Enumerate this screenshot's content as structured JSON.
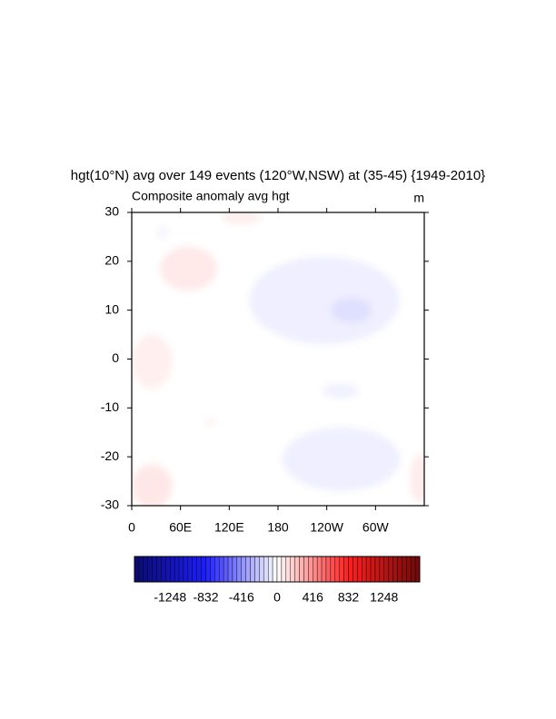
{
  "chart_data": {
    "type": "contour-map",
    "title": "hgt(10°N) avg over 149 events (120°W,NSW) at (35-45) {1949-2010}",
    "subtitle_left": "Composite anomaly avg hgt",
    "subtitle_right": "m",
    "xlim": [
      0,
      360
    ],
    "xticks": [
      0,
      {
        "value": 60,
        "label": "60E"
      },
      {
        "value": 120,
        "label": "120E"
      },
      180,
      {
        "value": 240,
        "label": "120W"
      },
      {
        "value": 300,
        "label": "60W"
      }
    ],
    "ylim": [
      -30,
      30
    ],
    "yticks": [
      30,
      20,
      10,
      0,
      -10,
      -20,
      -30
    ],
    "colormap": [
      "#0a0a6e",
      "#1e1eff",
      "#ffffff",
      "#ff1e1e",
      "#6e0a0a"
    ],
    "colorbar": {
      "lim": [
        -1664,
        1664
      ],
      "step": 52,
      "ticks": [
        -1248,
        -832,
        -416,
        0,
        416,
        832,
        1248
      ]
    },
    "patches": [
      {
        "lon": 135,
        "lat": 29,
        "dlon": 50,
        "dlat": 3,
        "value": 60
      },
      {
        "lon": 70,
        "lat": 18.5,
        "dlon": 70,
        "dlat": 9,
        "value": 80
      },
      {
        "lon": 237,
        "lat": 12,
        "dlon": 185,
        "dlat": 18,
        "value": -60
      },
      {
        "lon": 270,
        "lat": 10,
        "dlon": 50,
        "dlat": 5,
        "value": -120
      },
      {
        "lon": 25,
        "lat": -0.5,
        "dlon": 50,
        "dlat": 11,
        "value": 60
      },
      {
        "lon": 257,
        "lat": -6.5,
        "dlon": 45,
        "dlat": 3,
        "value": -50
      },
      {
        "lon": 258,
        "lat": -20.5,
        "dlon": 145,
        "dlat": 13,
        "value": -60
      },
      {
        "lon": 25,
        "lat": -26,
        "dlon": 50,
        "dlat": 9,
        "value": 90
      },
      {
        "lon": 355,
        "lat": -24.5,
        "dlon": 25,
        "dlat": 10,
        "value": 70
      },
      {
        "lon": 97,
        "lat": -13,
        "dlon": 15,
        "dlat": 1.5,
        "value": 50
      },
      {
        "lon": 38,
        "lat": 26,
        "dlon": 15,
        "dlat": 2.5,
        "value": -40
      }
    ]
  }
}
